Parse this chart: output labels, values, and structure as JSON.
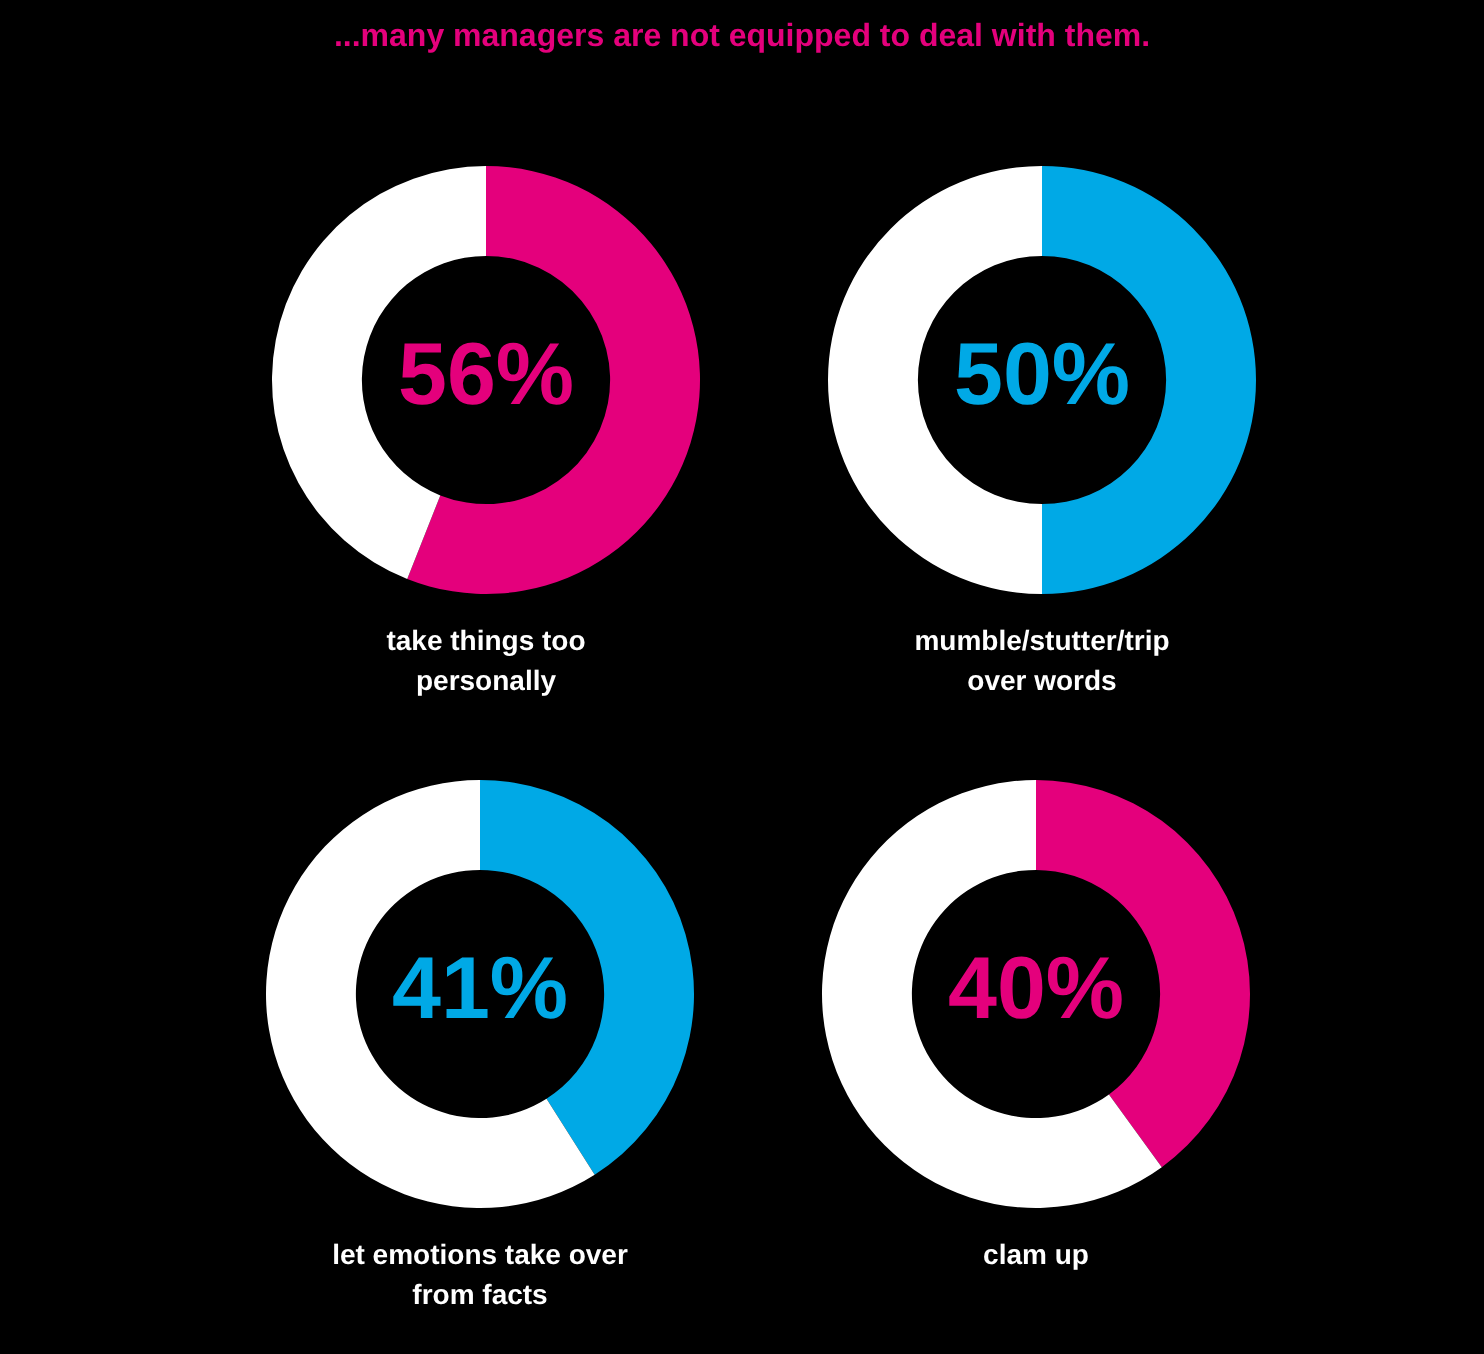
{
  "chart_data": [
    {
      "type": "donut",
      "title": "...many managers are not equipped to deal with them.",
      "xlabel": "take things too personally",
      "categories": [
        null,
        null
      ],
      "values": [
        56,
        44
      ],
      "colors": [
        "#e4007c",
        "#ffffff"
      ],
      "value_labels": [
        "56%",
        null
      ]
    },
    {
      "type": "donut",
      "xlabel": "mumble/stutter/trip over words",
      "categories": [
        null,
        null
      ],
      "values": [
        50,
        50
      ],
      "colors": [
        "#00a9e6",
        "#ffffff"
      ],
      "value_labels": [
        "50%",
        null
      ]
    },
    {
      "type": "donut",
      "xlabel": "let emotions take over from facts",
      "categories": [
        null,
        null
      ],
      "values": [
        41,
        59
      ],
      "colors": [
        "#00a9e6",
        "#ffffff"
      ],
      "value_labels": [
        "41%",
        null
      ]
    },
    {
      "type": "donut",
      "xlabel": "clam up",
      "categories": [
        null,
        null
      ],
      "values": [
        40,
        60
      ],
      "colors": [
        "#e4007c",
        "#ffffff"
      ],
      "value_labels": [
        "40%",
        null
      ]
    }
  ]
}
